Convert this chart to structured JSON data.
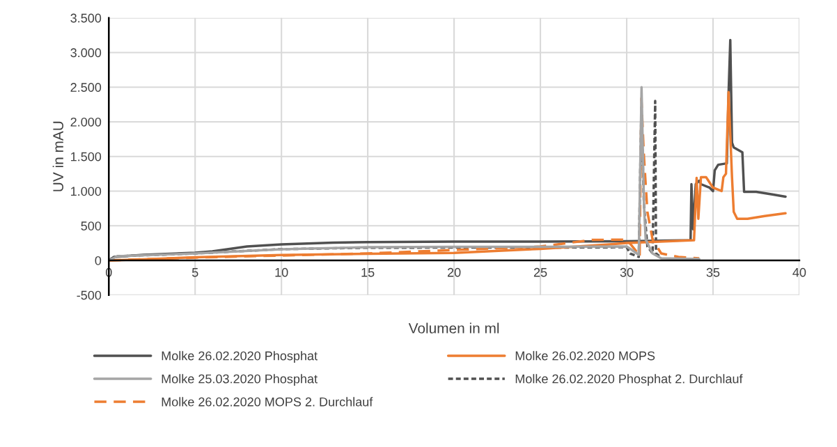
{
  "chart_data": {
    "type": "line",
    "xlabel": "Volumen in ml",
    "ylabel": "UV in mAU",
    "xlim": [
      0,
      40
    ],
    "xticks": [
      0,
      5,
      10,
      15,
      20,
      25,
      30,
      35,
      40
    ],
    "ylim": [
      -500,
      3500
    ],
    "yticks": [
      {
        "value": -500,
        "label": "-500"
      },
      0,
      500,
      {
        "value": 1000,
        "label": "1.000"
      },
      {
        "value": 1500,
        "label": "1.500"
      },
      {
        "value": 2000,
        "label": "2.000"
      },
      {
        "value": 2500,
        "label": "2.500"
      },
      {
        "value": 3000,
        "label": "3.000"
      },
      {
        "value": 3500,
        "label": "3.500"
      }
    ],
    "grid": true,
    "legend": "bottom",
    "marker": "none",
    "series": [
      {
        "name": "Molke 26.02.2020 Phosphat",
        "color": "#505050",
        "line_style": "solid",
        "x": [
          0,
          0.3,
          2,
          5,
          6,
          8,
          10,
          13,
          15,
          20,
          25,
          30,
          33.7,
          33.75,
          33.85,
          34.0,
          34.2,
          34.3,
          34.8,
          35.0,
          35.1,
          35.3,
          35.8,
          35.9,
          36.0,
          36.1,
          36.2,
          36.7,
          36.8,
          37.5,
          38.5,
          39.2
        ],
        "values": [
          0,
          50,
          80,
          110,
          130,
          200,
          230,
          255,
          264,
          270,
          270,
          275,
          290,
          1100,
          450,
          1100,
          1150,
          1100,
          1050,
          1000,
          1300,
          1380,
          1400,
          2400,
          3180,
          1700,
          1630,
          1560,
          990,
          990,
          950,
          920
        ]
      },
      {
        "name": "Molke 26.02.2020 MOPS",
        "color": "#ed7d31",
        "line_style": "solid",
        "x": [
          0,
          2,
          5,
          10,
          15,
          20,
          25,
          29,
          30,
          33.9,
          34.05,
          34.15,
          34.3,
          34.6,
          35.0,
          35.5,
          35.6,
          35.75,
          35.9,
          36.1,
          36.2,
          36.4,
          37,
          38,
          39.2
        ],
        "values": [
          0,
          15,
          44,
          78,
          95,
          108,
          166,
          230,
          250,
          290,
          1190,
          600,
          1200,
          1200,
          1050,
          1000,
          1200,
          1250,
          2430,
          1200,
          700,
          600,
          600,
          640,
          680
        ]
      },
      {
        "name": "Molke 25.03.2020 Phosphat",
        "color": "#a5a5a5",
        "line_style": "solid",
        "x": [
          0,
          0.5,
          5,
          10,
          15,
          20,
          25,
          30,
          30.3,
          30.7,
          30.86,
          31.0,
          31.1,
          31.5,
          32,
          33,
          34.2
        ],
        "values": [
          0,
          60,
          100,
          160,
          190,
          195,
          195,
          200,
          150,
          80,
          2500,
          800,
          300,
          100,
          30,
          25,
          20
        ]
      },
      {
        "name": "Molke 26.02.2020 Phosphat 2. Durchlauf",
        "color": "#505050",
        "line_style": "dotted",
        "x": [
          0,
          0.5,
          5,
          10,
          15,
          20,
          25,
          30,
          30.2,
          30.7,
          30.85,
          31.0,
          31.2,
          31.5,
          31.65,
          31.7,
          32
        ],
        "values": [
          0,
          60,
          101,
          162,
          183,
          185,
          185,
          190,
          100,
          50,
          2210,
          800,
          200,
          100,
          2300,
          100,
          40
        ]
      },
      {
        "name": "Molke 26.02.2020 MOPS 2. Durchlauf",
        "color": "#ed7d31",
        "line_style": "dashed",
        "x": [
          0,
          5,
          10,
          15,
          20,
          25,
          28,
          30,
          30.5,
          30.75,
          30.85,
          31.0,
          31.2,
          31.5,
          32,
          33,
          34.2
        ],
        "values": [
          0,
          40,
          70,
          100,
          150,
          200,
          296,
          300,
          150,
          50,
          2340,
          1500,
          700,
          300,
          100,
          50,
          30
        ]
      }
    ]
  }
}
